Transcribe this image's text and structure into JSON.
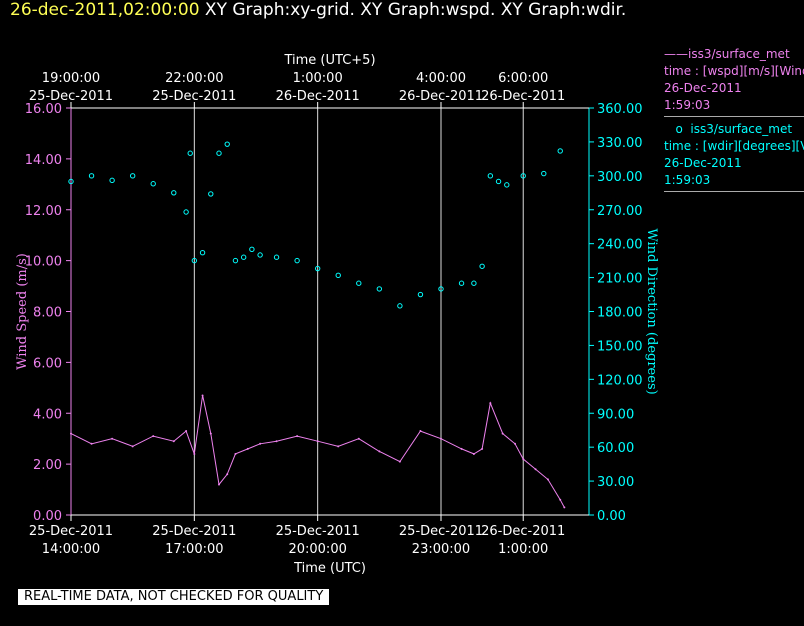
{
  "header": {
    "timestamp": "26-dec-2011,02:00:00",
    "titles": "XY Graph:xy-grid.  XY Graph:wspd.  XY Graph:wdir."
  },
  "notice": "REAL-TIME DATA, NOT CHECKED FOR QUALITY",
  "legend": {
    "items": [
      {
        "line1": "iss3/surface_met",
        "line2": "time : [wspd][m/s][Wind",
        "line3": "26-Dec-2011",
        "line4": "1:59:03",
        "color": "#ee82ee",
        "marker": "line"
      },
      {
        "line1": "iss3/surface_met",
        "line2": "time : [wdir][degrees][V",
        "line3": "26-Dec-2011",
        "line4": "1:59:03",
        "color": "#00ffff",
        "marker": "circle"
      }
    ]
  },
  "chart_data": {
    "type": "line",
    "title": "",
    "bottom_axis_label": "Time (UTC)",
    "top_axis_label": "Time (UTC+5)",
    "ylabel_left": "Wind Speed (m/s)",
    "ylabel_right": "Wind Direction (degrees)",
    "xlim_hours": [
      14.0,
      26.6
    ],
    "ylim_left": [
      0,
      16
    ],
    "ylim_right": [
      0,
      360
    ],
    "left_ticks": [
      "0.00",
      "2.00",
      "4.00",
      "6.00",
      "8.00",
      "10.00",
      "12.00",
      "14.00",
      "16.00"
    ],
    "right_ticks": [
      "0.00",
      "30.00",
      "60.00",
      "90.00",
      "120.00",
      "150.00",
      "180.00",
      "210.00",
      "240.00",
      "270.00",
      "300.00",
      "330.00",
      "360.00"
    ],
    "bottom_ticks": [
      {
        "x": 14,
        "date": "25-Dec-2011",
        "time": "14:00:00"
      },
      {
        "x": 17,
        "date": "25-Dec-2011",
        "time": "17:00:00"
      },
      {
        "x": 20,
        "date": "25-Dec-2011",
        "time": "20:00:00"
      },
      {
        "x": 23,
        "date": "25-Dec-2011",
        "time": "23:00:00"
      },
      {
        "x": 25,
        "date": "26-Dec-2011",
        "time": "1:00:00"
      }
    ],
    "top_ticks": [
      {
        "x": 14,
        "time": "19:00:00",
        "date": "25-Dec-2011"
      },
      {
        "x": 17,
        "time": "22:00:00",
        "date": "25-Dec-2011"
      },
      {
        "x": 20,
        "time": "1:00:00",
        "date": "26-Dec-2011"
      },
      {
        "x": 23,
        "time": "4:00:00",
        "date": "26-Dec-2011"
      },
      {
        "x": 25,
        "time": "6:00:00",
        "date": "26-Dec-2011"
      }
    ],
    "grid": true,
    "series": [
      {
        "name": "iss3/surface_met time : [wspd][m/s][Wind",
        "axis": "left",
        "color": "#ee82ee",
        "style": "line",
        "x": [
          14.0,
          14.5,
          15.0,
          15.5,
          16.0,
          16.5,
          16.8,
          17.0,
          17.2,
          17.4,
          17.6,
          17.8,
          18.0,
          18.3,
          18.6,
          19.0,
          19.5,
          20.0,
          20.5,
          21.0,
          21.5,
          22.0,
          22.5,
          23.0,
          23.5,
          23.8,
          24.0,
          24.2,
          24.5,
          24.8,
          25.0,
          25.3,
          25.6,
          25.9,
          26.0
        ],
        "y": [
          3.2,
          2.8,
          3.0,
          2.7,
          3.1,
          2.9,
          3.3,
          2.4,
          4.7,
          3.2,
          1.2,
          1.6,
          2.4,
          2.6,
          2.8,
          2.9,
          3.1,
          2.9,
          2.7,
          3.0,
          2.5,
          2.1,
          3.3,
          3.0,
          2.6,
          2.4,
          2.6,
          4.4,
          3.2,
          2.8,
          2.2,
          1.8,
          1.4,
          0.6,
          0.3
        ]
      },
      {
        "name": "iss3/surface_met time : [wdir][degrees][V",
        "axis": "right",
        "color": "#00ffff",
        "style": "scatter",
        "x": [
          14.0,
          14.5,
          15.0,
          15.5,
          16.0,
          16.5,
          16.8,
          16.9,
          17.0,
          17.2,
          17.4,
          17.6,
          17.8,
          18.0,
          18.2,
          18.4,
          18.6,
          19.0,
          19.5,
          20.0,
          20.5,
          21.0,
          21.5,
          22.0,
          22.5,
          23.0,
          23.5,
          23.8,
          24.0,
          24.2,
          24.4,
          24.6,
          25.0,
          25.5,
          25.9
        ],
        "y": [
          295,
          300,
          296,
          300,
          293,
          285,
          268,
          320,
          225,
          232,
          284,
          320,
          328,
          225,
          228,
          235,
          230,
          228,
          225,
          218,
          212,
          205,
          200,
          185,
          195,
          200,
          205,
          205,
          220,
          300,
          295,
          292,
          300,
          302,
          322
        ]
      }
    ]
  }
}
